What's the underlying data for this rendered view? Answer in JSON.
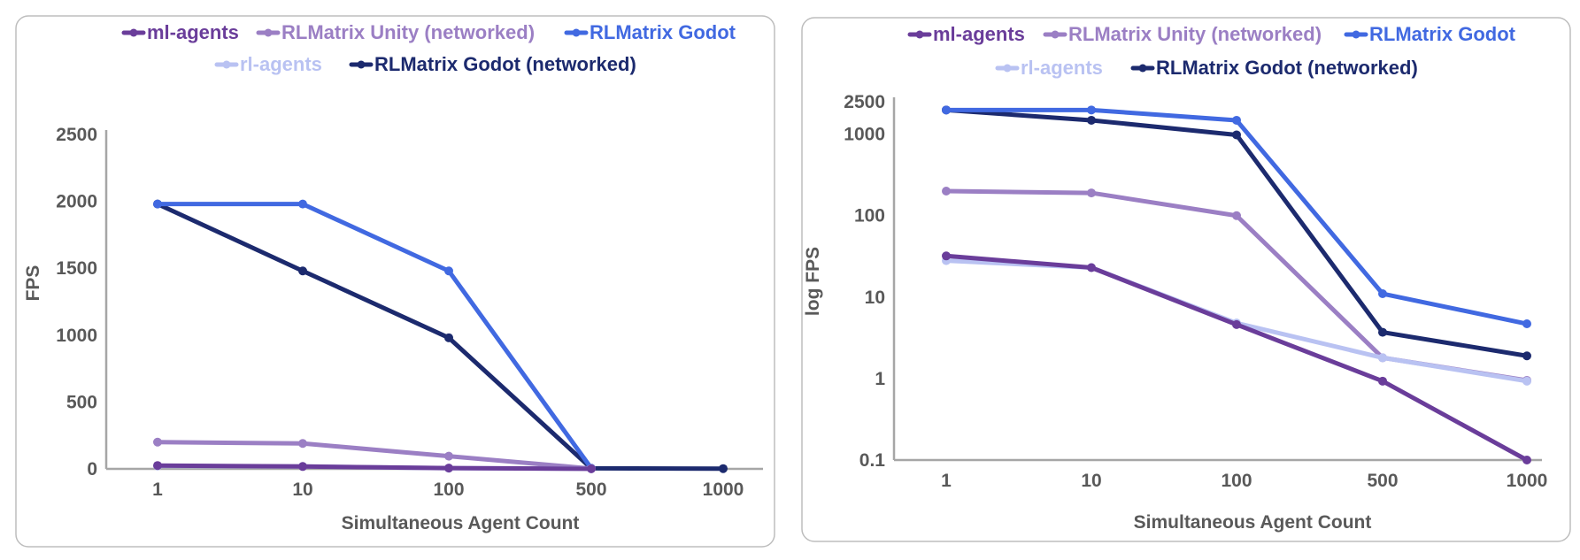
{
  "chart_data": [
    {
      "type": "line",
      "title": "",
      "xlabel": "Simultaneous Agent Count",
      "ylabel": "FPS",
      "yscale": "linear",
      "ylim": [
        0,
        2500
      ],
      "yticks": [
        "0",
        "500",
        "1000",
        "1500",
        "2000",
        "2500"
      ],
      "yticks_values": [
        0,
        500,
        1000,
        1500,
        2000,
        2500
      ],
      "categories": [
        "1",
        "10",
        "100",
        "500",
        "1000"
      ],
      "legend": "top",
      "series": [
        {
          "name": "ml-agents",
          "color": "#6a3d9a",
          "values": [
            25,
            18,
            6,
            1,
            null
          ]
        },
        {
          "name": "RLMatrix Unity (networked)",
          "color": "#9b7fc4",
          "values": [
            200,
            190,
            95,
            2,
            null
          ]
        },
        {
          "name": "RLMatrix Godot",
          "color": "#4169e1",
          "values": [
            1980,
            1980,
            1480,
            5,
            null
          ]
        },
        {
          "name": "rl-agents",
          "color": "#b9c2f2",
          "values": [
            22,
            18,
            5,
            2,
            null
          ]
        },
        {
          "name": "RLMatrix Godot (networked)",
          "color": "#1c2a6e",
          "values": [
            1980,
            1480,
            980,
            4,
            2
          ]
        }
      ]
    },
    {
      "type": "line",
      "title": "",
      "xlabel": "Simultaneous Agent Count",
      "ylabel": "log FPS",
      "yscale": "log",
      "ylim": [
        0.1,
        2500
      ],
      "yticks": [
        "0.1",
        "1",
        "10",
        "100",
        "1000",
        "2500"
      ],
      "yticks_values": [
        0.1,
        1,
        10,
        100,
        1000,
        2500
      ],
      "categories": [
        "1",
        "10",
        "100",
        "500",
        "1000"
      ],
      "legend": "top",
      "series": [
        {
          "name": "ml-agents",
          "color": "#6a3d9a",
          "values": [
            32,
            23,
            4.6,
            0.93,
            0.1
          ]
        },
        {
          "name": "RLMatrix Unity (networked)",
          "color": "#9b7fc4",
          "values": [
            200,
            190,
            100,
            1.8,
            0.95
          ]
        },
        {
          "name": "RLMatrix Godot",
          "color": "#4169e1",
          "values": [
            1980,
            1980,
            1480,
            11,
            4.7
          ]
        },
        {
          "name": "rl-agents",
          "color": "#b9c2f2",
          "values": [
            28,
            23,
            4.8,
            1.8,
            0.93
          ]
        },
        {
          "name": "RLMatrix Godot (networked)",
          "color": "#1c2a6e",
          "values": [
            1980,
            1480,
            980,
            3.7,
            1.9
          ]
        }
      ]
    }
  ]
}
